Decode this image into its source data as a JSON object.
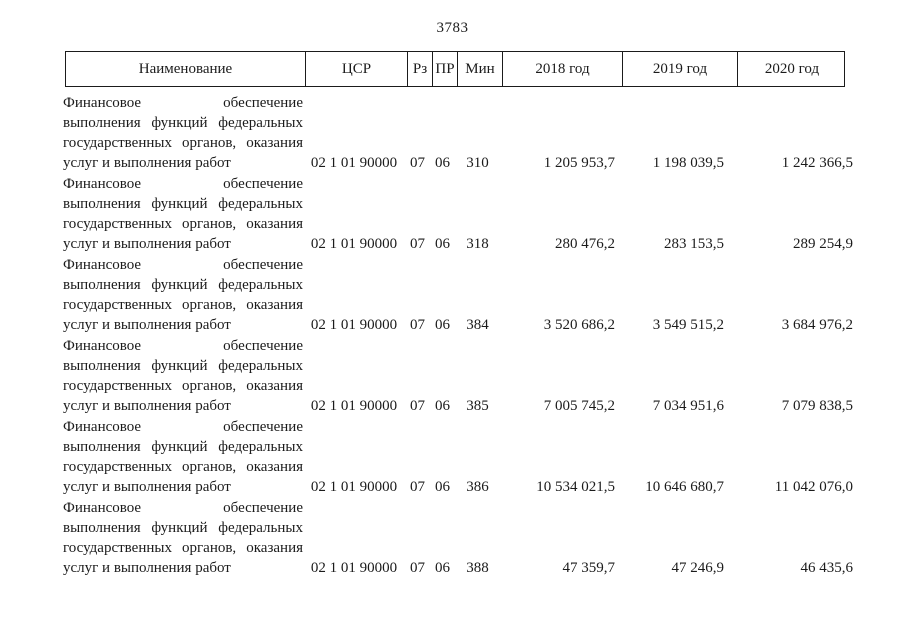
{
  "page": {
    "number": "3783"
  },
  "table": {
    "headers": {
      "name": "Наименование",
      "csr": "ЦСР",
      "rz": "Рз",
      "pr": "ПР",
      "min": "Мин",
      "y2018": "2018 год",
      "y2019": "2019 год",
      "y2020": "2020 год"
    },
    "rows": [
      {
        "name": "Финансовое обеспечение выполнения функций федеральных государственных органов, оказания услуг и выполнения работ",
        "csr": "02 1 01 90000",
        "rz": "07",
        "pr": "06",
        "min": "310",
        "y2018": "1 205 953,7",
        "y2019": "1 198 039,5",
        "y2020": "1 242 366,5"
      },
      {
        "name": "Финансовое обеспечение выполнения функций федеральных государственных органов, оказания услуг и выполнения работ",
        "csr": "02 1 01 90000",
        "rz": "07",
        "pr": "06",
        "min": "318",
        "y2018": "280 476,2",
        "y2019": "283 153,5",
        "y2020": "289 254,9"
      },
      {
        "name": "Финансовое обеспечение выполнения функций федеральных государственных органов, оказания услуг и выполнения работ",
        "csr": "02 1 01 90000",
        "rz": "07",
        "pr": "06",
        "min": "384",
        "y2018": "3 520 686,2",
        "y2019": "3 549 515,2",
        "y2020": "3 684 976,2"
      },
      {
        "name": "Финансовое обеспечение выполнения функций федеральных государственных органов, оказания услуг и выполнения работ",
        "csr": "02 1 01 90000",
        "rz": "07",
        "pr": "06",
        "min": "385",
        "y2018": "7 005 745,2",
        "y2019": "7 034 951,6",
        "y2020": "7 079 838,5"
      },
      {
        "name": "Финансовое обеспечение выполнения функций федеральных государственных органов, оказания услуг и выполнения работ",
        "csr": "02 1 01 90000",
        "rz": "07",
        "pr": "06",
        "min": "386",
        "y2018": "10 534 021,5",
        "y2019": "10 646 680,7",
        "y2020": "11 042 076,0"
      },
      {
        "name": "Финансовое обеспечение выполнения функций федеральных государственных органов, оказания услуг и выполнения работ",
        "csr": "02 1 01 90000",
        "rz": "07",
        "pr": "06",
        "min": "388",
        "y2018": "47 359,7",
        "y2019": "47 246,9",
        "y2020": "46 435,6"
      }
    ]
  }
}
